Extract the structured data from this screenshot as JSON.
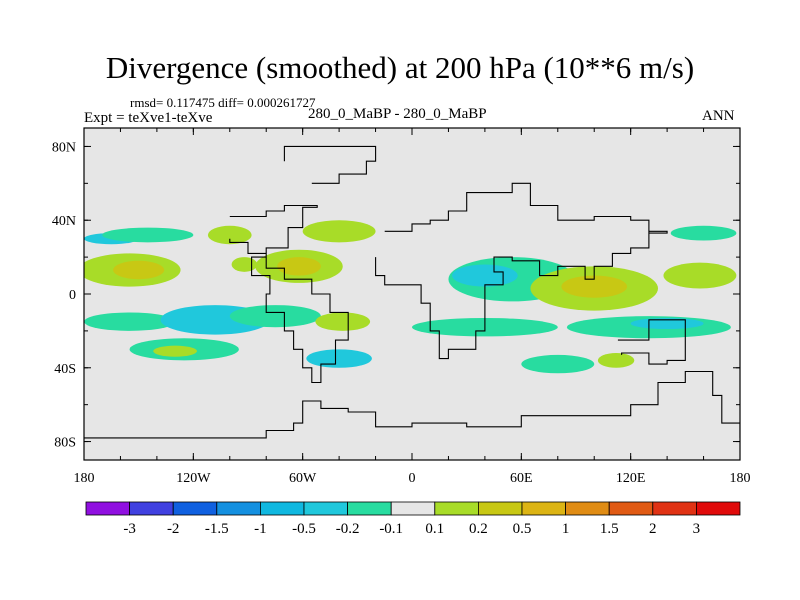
{
  "header": {
    "title": "Divergence (smoothed) at 200 hPa (10**6 m/s)",
    "stats": "rmsd= 0.117475 diff= 0.000261727",
    "expt": "Expt = teXve1-teXve",
    "case": "280_0_MaBP - 280_0_MaBP",
    "season": "ANN"
  },
  "chart_data": {
    "type": "contour-map",
    "title": "Divergence (smoothed) at 200 hPa (10**6 m/s)",
    "projection": "cylindrical equidistant",
    "xlim": [
      -180,
      180
    ],
    "ylim": [
      -90,
      90
    ],
    "x_ticks": [
      {
        "value": -180,
        "label": "180"
      },
      {
        "value": -120,
        "label": "120W"
      },
      {
        "value": -60,
        "label": "60W"
      },
      {
        "value": 0,
        "label": "0"
      },
      {
        "value": 60,
        "label": "60E"
      },
      {
        "value": 120,
        "label": "120E"
      },
      {
        "value": 180,
        "label": "180"
      }
    ],
    "y_ticks": [
      {
        "value": 80,
        "label": "80N"
      },
      {
        "value": 40,
        "label": "40N"
      },
      {
        "value": 0,
        "label": "0"
      },
      {
        "value": -40,
        "label": "40S"
      },
      {
        "value": -80,
        "label": "80S"
      }
    ],
    "colors": {
      "background": "#e6e6e6",
      "coast": "#000000",
      "cyan": "#20c8dc",
      "green": "#28dca0",
      "yellowgreen": "#a8dc28",
      "olive": "#c8c814"
    },
    "colorbar": {
      "labels": [
        "-3",
        "-2",
        "-1.5",
        "-1",
        "-0.5",
        "-0.2",
        "-0.1",
        "0.1",
        "0.2",
        "0.5",
        "1",
        "1.5",
        "2",
        "3"
      ],
      "colors": [
        "#9010e0",
        "#4040e0",
        "#1060e0",
        "#1490e0",
        "#10b8e0",
        "#20c8dc",
        "#28dca0",
        "#e6e6e6",
        "#a8dc28",
        "#c8c814",
        "#dcb414",
        "#e08c14",
        "#e05a14",
        "#e03214",
        "#e00a0a"
      ]
    },
    "regions": [
      {
        "value": -0.2,
        "color": "cyan",
        "lon": -165,
        "lat": 30,
        "rx": 15,
        "ry": 3
      },
      {
        "value": -0.1,
        "color": "green",
        "lon": -145,
        "lat": 32,
        "rx": 25,
        "ry": 4
      },
      {
        "value": 0.2,
        "color": "yellowgreen",
        "lon": -100,
        "lat": 32,
        "rx": 12,
        "ry": 5
      },
      {
        "value": 0.2,
        "color": "yellowgreen",
        "lon": -40,
        "lat": 34,
        "rx": 20,
        "ry": 6
      },
      {
        "value": 0.2,
        "color": "yellowgreen",
        "lon": -155,
        "lat": 13,
        "rx": 28,
        "ry": 9
      },
      {
        "value": 0.5,
        "color": "olive",
        "lon": -150,
        "lat": 13,
        "rx": 14,
        "ry": 5
      },
      {
        "value": 0.2,
        "color": "yellowgreen",
        "lon": -62,
        "lat": 15,
        "rx": 24,
        "ry": 9
      },
      {
        "value": 0.5,
        "color": "olive",
        "lon": -62,
        "lat": 15,
        "rx": 12,
        "ry": 5
      },
      {
        "value": 0.2,
        "color": "yellowgreen",
        "lon": -92,
        "lat": 16,
        "rx": 7,
        "ry": 4
      },
      {
        "value": -0.1,
        "color": "green",
        "lon": 55,
        "lat": 8,
        "rx": 35,
        "ry": 12
      },
      {
        "value": -0.2,
        "color": "cyan",
        "lon": 40,
        "lat": 10,
        "rx": 18,
        "ry": 6
      },
      {
        "value": 0.2,
        "color": "yellowgreen",
        "lon": 100,
        "lat": 3,
        "rx": 35,
        "ry": 12
      },
      {
        "value": 0.5,
        "color": "olive",
        "lon": 100,
        "lat": 4,
        "rx": 18,
        "ry": 6
      },
      {
        "value": 0.2,
        "color": "yellowgreen",
        "lon": 158,
        "lat": 10,
        "rx": 20,
        "ry": 7
      },
      {
        "value": -0.1,
        "color": "green",
        "lon": 160,
        "lat": 33,
        "rx": 18,
        "ry": 4
      },
      {
        "value": -0.1,
        "color": "green",
        "lon": -155,
        "lat": -15,
        "rx": 25,
        "ry": 5
      },
      {
        "value": -0.2,
        "color": "cyan",
        "lon": -108,
        "lat": -14,
        "rx": 30,
        "ry": 8
      },
      {
        "value": -0.1,
        "color": "green",
        "lon": -75,
        "lat": -12,
        "rx": 25,
        "ry": 6
      },
      {
        "value": 0.2,
        "color": "yellowgreen",
        "lon": -38,
        "lat": -15,
        "rx": 15,
        "ry": 5
      },
      {
        "value": -0.1,
        "color": "green",
        "lon": 40,
        "lat": -18,
        "rx": 40,
        "ry": 5
      },
      {
        "value": -0.1,
        "color": "green",
        "lon": 130,
        "lat": -18,
        "rx": 45,
        "ry": 6
      },
      {
        "value": -0.2,
        "color": "cyan",
        "lon": 140,
        "lat": -16,
        "rx": 20,
        "ry": 3
      },
      {
        "value": -0.1,
        "color": "green",
        "lon": -125,
        "lat": -30,
        "rx": 30,
        "ry": 6
      },
      {
        "value": 0.2,
        "color": "yellowgreen",
        "lon": -130,
        "lat": -31,
        "rx": 12,
        "ry": 3
      },
      {
        "value": -0.2,
        "color": "cyan",
        "lon": -40,
        "lat": -35,
        "rx": 18,
        "ry": 5
      },
      {
        "value": -0.1,
        "color": "green",
        "lon": 80,
        "lat": -38,
        "rx": 20,
        "ry": 5
      },
      {
        "value": 0.2,
        "color": "yellowgreen",
        "lon": 112,
        "lat": -36,
        "rx": 10,
        "ry": 4
      }
    ],
    "coastlines": [
      {
        "name": "continents-north",
        "points": [
          [
            -180,
            -78
          ],
          [
            -100,
            -78
          ],
          [
            -80,
            -74
          ],
          [
            -65,
            -70
          ],
          [
            -60,
            -58
          ],
          [
            -50,
            -62
          ],
          [
            -35,
            -64
          ],
          [
            -20,
            -72
          ],
          [
            0,
            -70
          ],
          [
            30,
            -72
          ],
          [
            60,
            -66
          ],
          [
            100,
            -66
          ],
          [
            120,
            -60
          ],
          [
            135,
            -48
          ],
          [
            150,
            -42
          ],
          [
            165,
            -55
          ],
          [
            170,
            -70
          ],
          [
            180,
            -78
          ]
        ]
      },
      {
        "name": "americas",
        "points": [
          [
            -100,
            42
          ],
          [
            -80,
            45
          ],
          [
            -70,
            48
          ],
          [
            -52,
            47
          ],
          [
            -60,
            36
          ],
          [
            -68,
            25
          ],
          [
            -80,
            20
          ],
          [
            -88,
            10
          ],
          [
            -78,
            0
          ],
          [
            -80,
            -10
          ],
          [
            -70,
            -20
          ],
          [
            -65,
            -30
          ],
          [
            -60,
            -40
          ],
          [
            -55,
            -48
          ],
          [
            -50,
            -38
          ],
          [
            -42,
            -25
          ],
          [
            -35,
            -10
          ],
          [
            -45,
            0
          ],
          [
            -55,
            8
          ],
          [
            -70,
            14
          ],
          [
            -80,
            22
          ],
          [
            -90,
            28
          ],
          [
            -100,
            30
          ]
        ]
      },
      {
        "name": "eurasia-africa",
        "points": [
          [
            -15,
            34
          ],
          [
            0,
            38
          ],
          [
            10,
            40
          ],
          [
            20,
            45
          ],
          [
            30,
            55
          ],
          [
            55,
            60
          ],
          [
            65,
            48
          ],
          [
            80,
            40
          ],
          [
            100,
            42
          ],
          [
            120,
            40
          ],
          [
            130,
            33
          ],
          [
            140,
            34
          ],
          [
            130,
            25
          ],
          [
            120,
            22
          ],
          [
            110,
            15
          ],
          [
            100,
            8
          ],
          [
            95,
            15
          ],
          [
            80,
            10
          ],
          [
            70,
            18
          ],
          [
            55,
            20
          ],
          [
            45,
            12
          ],
          [
            50,
            5
          ],
          [
            40,
            -5
          ],
          [
            40,
            -20
          ],
          [
            35,
            -30
          ],
          [
            20,
            -35
          ],
          [
            15,
            -20
          ],
          [
            10,
            -5
          ],
          [
            5,
            5
          ],
          [
            -15,
            10
          ],
          [
            -20,
            20
          ]
        ]
      },
      {
        "name": "australia",
        "points": [
          [
            113,
            -25
          ],
          [
            130,
            -14
          ],
          [
            140,
            -14
          ],
          [
            150,
            -25
          ],
          [
            150,
            -36
          ],
          [
            140,
            -38
          ],
          [
            130,
            -32
          ],
          [
            115,
            -33
          ]
        ]
      },
      {
        "name": "greenland",
        "points": [
          [
            -55,
            60
          ],
          [
            -40,
            65
          ],
          [
            -25,
            72
          ],
          [
            -20,
            80
          ],
          [
            -60,
            80
          ],
          [
            -70,
            72
          ]
        ]
      }
    ]
  }
}
